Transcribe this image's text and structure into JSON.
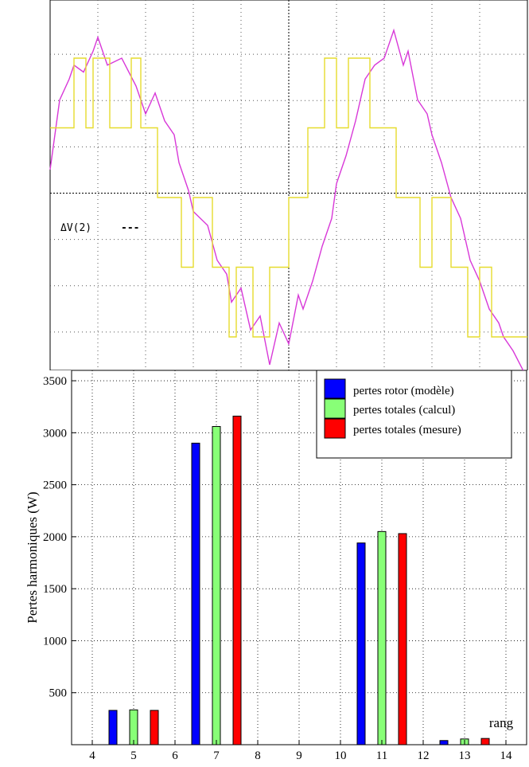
{
  "chart_data": [
    {
      "type": "line",
      "scope_label": "ΔV(2)",
      "scope_marker": "---",
      "series": [
        {
          "color": "#d838d8",
          "x": [
            0,
            4,
            8,
            10,
            14,
            18,
            20,
            24,
            30,
            36,
            40,
            44,
            48,
            52,
            54,
            58,
            60,
            66,
            70,
            74,
            76,
            80,
            84,
            88,
            92,
            96,
            100,
            104,
            106,
            110,
            114,
            118,
            120,
            124,
            128,
            132,
            136,
            140,
            144,
            148,
            150,
            154,
            158,
            160,
            164,
            168,
            172,
            176,
            180,
            184,
            188,
            190,
            194,
            200
          ],
          "y": [
            0.2,
            0.7,
            0.85,
            0.95,
            0.9,
            1.05,
            1.15,
            0.95,
            1.0,
            0.8,
            0.6,
            0.75,
            0.55,
            0.45,
            0.25,
            0.05,
            -0.1,
            -0.2,
            -0.45,
            -0.55,
            -0.75,
            -0.65,
            -0.95,
            -0.85,
            -1.2,
            -0.9,
            -1.05,
            -0.7,
            -0.8,
            -0.6,
            -0.35,
            -0.15,
            0.1,
            0.3,
            0.55,
            0.85,
            0.95,
            1.0,
            1.2,
            0.95,
            1.05,
            0.7,
            0.6,
            0.45,
            0.25,
            0.0,
            -0.15,
            -0.45,
            -0.6,
            -0.8,
            -0.9,
            -1.0,
            -1.1,
            -1.3
          ]
        },
        {
          "color": "#e6dc2e",
          "x": [
            0,
            5,
            10,
            12,
            15,
            18,
            20,
            25,
            30,
            34,
            38,
            40,
            45,
            48,
            52,
            55,
            58,
            60,
            65,
            68,
            72,
            75,
            78,
            80,
            85,
            88,
            92,
            95,
            98,
            100,
            105,
            108,
            112,
            115,
            118,
            120,
            125,
            130,
            134,
            138,
            140,
            145,
            148,
            152,
            155,
            158,
            160,
            165,
            168,
            172,
            175,
            178,
            180,
            185,
            190,
            200
          ],
          "y": [
            0.5,
            0.5,
            1.0,
            1.0,
            0.5,
            1.0,
            1.0,
            0.5,
            0.5,
            1.0,
            0.5,
            0.5,
            0.0,
            0.0,
            0.0,
            -0.5,
            -0.5,
            0.0,
            0.0,
            -0.5,
            -0.5,
            -1.0,
            -0.5,
            -0.5,
            -1.0,
            -1.0,
            -0.5,
            -0.5,
            -0.5,
            0.0,
            0.0,
            0.5,
            0.5,
            1.0,
            1.0,
            0.5,
            1.0,
            1.0,
            0.5,
            0.5,
            0.5,
            0.0,
            0.0,
            0.0,
            -0.5,
            -0.5,
            0.0,
            0.0,
            -0.5,
            -0.5,
            -1.0,
            -1.0,
            -0.5,
            -1.0,
            -1.0,
            -1.0
          ]
        }
      ]
    },
    {
      "type": "bar",
      "ylabel": "Pertes harmoniques (W)",
      "xlabel": "rang",
      "ylim": [
        0,
        3600
      ],
      "xlim": [
        3.5,
        14.5
      ],
      "yticks": [
        500,
        1000,
        1500,
        2000,
        2500,
        3000,
        3500
      ],
      "xticks": [
        4,
        5,
        6,
        7,
        8,
        9,
        10,
        11,
        12,
        13,
        14
      ],
      "grid": true,
      "legend_position": "top-right",
      "series": [
        {
          "name": "pertes rotor (modèle)",
          "color": "#0000ff",
          "x": [
            4.5,
            6.5,
            10.5,
            12.5
          ],
          "values": [
            330,
            2900,
            1940,
            40
          ]
        },
        {
          "name": "pertes totales (calcul)",
          "color": "#88ff77",
          "x": [
            5,
            7,
            11,
            13
          ],
          "values": [
            335,
            3060,
            2050,
            55
          ]
        },
        {
          "name": "pertes totales (mesure)",
          "color": "#ff0000",
          "x": [
            5.5,
            7.5,
            11.5,
            13.5
          ],
          "values": [
            330,
            3160,
            2030,
            60
          ]
        }
      ]
    }
  ]
}
